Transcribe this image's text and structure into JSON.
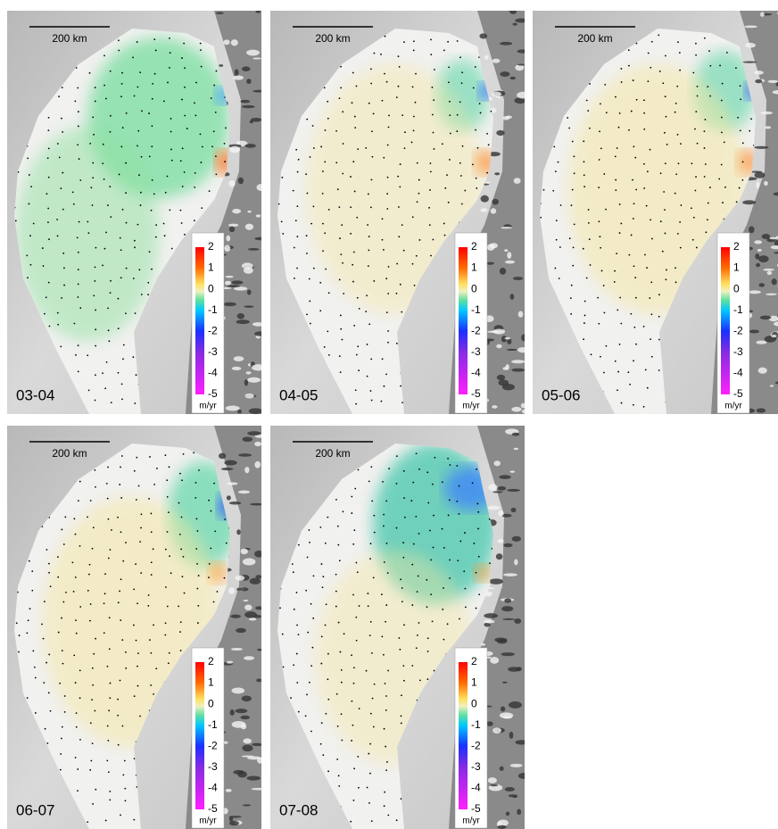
{
  "panels": [
    {
      "label": "03-04",
      "scale_bar": "200 km",
      "colorbar": {
        "ticks": [
          2,
          1,
          0,
          -1,
          -2,
          -3,
          -4,
          -5
        ],
        "unit": "m/yr"
      }
    },
    {
      "label": "04-05",
      "scale_bar": "200 km",
      "colorbar": {
        "ticks": [
          2,
          1,
          0,
          -1,
          -2,
          -3,
          -4,
          -5
        ],
        "unit": "m/yr"
      }
    },
    {
      "label": "05-06",
      "scale_bar": "200 km",
      "colorbar": {
        "ticks": [
          2,
          1,
          0,
          -1,
          -2,
          -3,
          -4,
          -5
        ],
        "unit": "m/yr"
      }
    },
    {
      "label": "06-07",
      "scale_bar": "200 km",
      "colorbar": {
        "ticks": [
          2,
          1,
          0,
          -1,
          -2,
          -3,
          -4,
          -5
        ],
        "unit": "m/yr"
      }
    },
    {
      "label": "07-08",
      "scale_bar": "200 km",
      "colorbar": {
        "ticks": [
          2,
          1,
          0,
          -1,
          -2,
          -3,
          -4,
          -5
        ],
        "unit": "m/yr"
      }
    }
  ]
}
